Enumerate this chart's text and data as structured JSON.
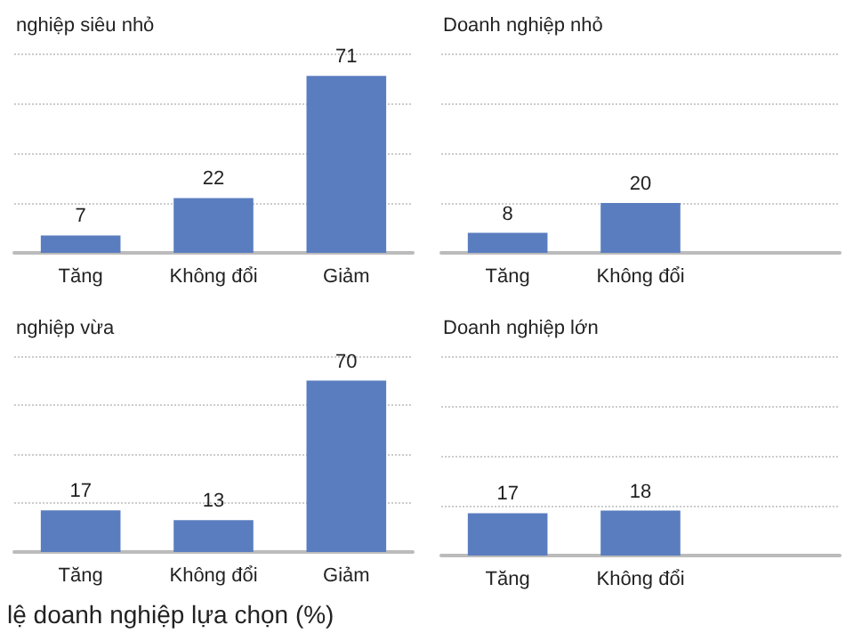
{
  "chart_data": [
    {
      "type": "bar",
      "title": "nghiệp siêu nhỏ",
      "categories": [
        "Tăng",
        "Không đổi",
        "Giảm"
      ],
      "values": [
        7,
        22,
        71
      ],
      "color": "#5a7dbf",
      "ylim": [
        0,
        80
      ],
      "yticks": [
        0,
        20,
        40,
        60,
        80
      ],
      "tick_labels": "x",
      "grid": "y",
      "data_labels": true
    },
    {
      "type": "bar",
      "title": "Doanh nghiệp nhỏ",
      "categories": [
        "Tăng",
        "Không đổi",
        null
      ],
      "values": [
        8,
        20,
        null
      ],
      "color": "#5a7dbf",
      "ylim": [
        0,
        80
      ],
      "yticks": [
        0,
        20,
        40,
        60,
        80
      ],
      "tick_labels": "x",
      "grid": "y",
      "data_labels": true
    },
    {
      "type": "bar",
      "title": "nghiệp vừa",
      "categories": [
        "Tăng",
        "Không đổi",
        "Giảm"
      ],
      "values": [
        17,
        13,
        70
      ],
      "color": "#5a7dbf",
      "ylim": [
        0,
        80
      ],
      "yticks": [
        0,
        20,
        40,
        60,
        80
      ],
      "tick_labels": "x",
      "grid": "y",
      "data_labels": true,
      "annotations": [
        "lệ doanh nghiệp lựa chọn (%)"
      ]
    },
    {
      "type": "bar",
      "title": "Doanh nghiệp lớn",
      "categories": [
        "Tăng",
        "Không đổi",
        null
      ],
      "values": [
        17,
        18,
        null
      ],
      "color": "#5a7dbf",
      "ylim": [
        0,
        80
      ],
      "yticks": [
        0,
        20,
        40,
        60,
        80
      ],
      "tick_labels": "x",
      "grid": "y",
      "data_labels": true
    }
  ]
}
